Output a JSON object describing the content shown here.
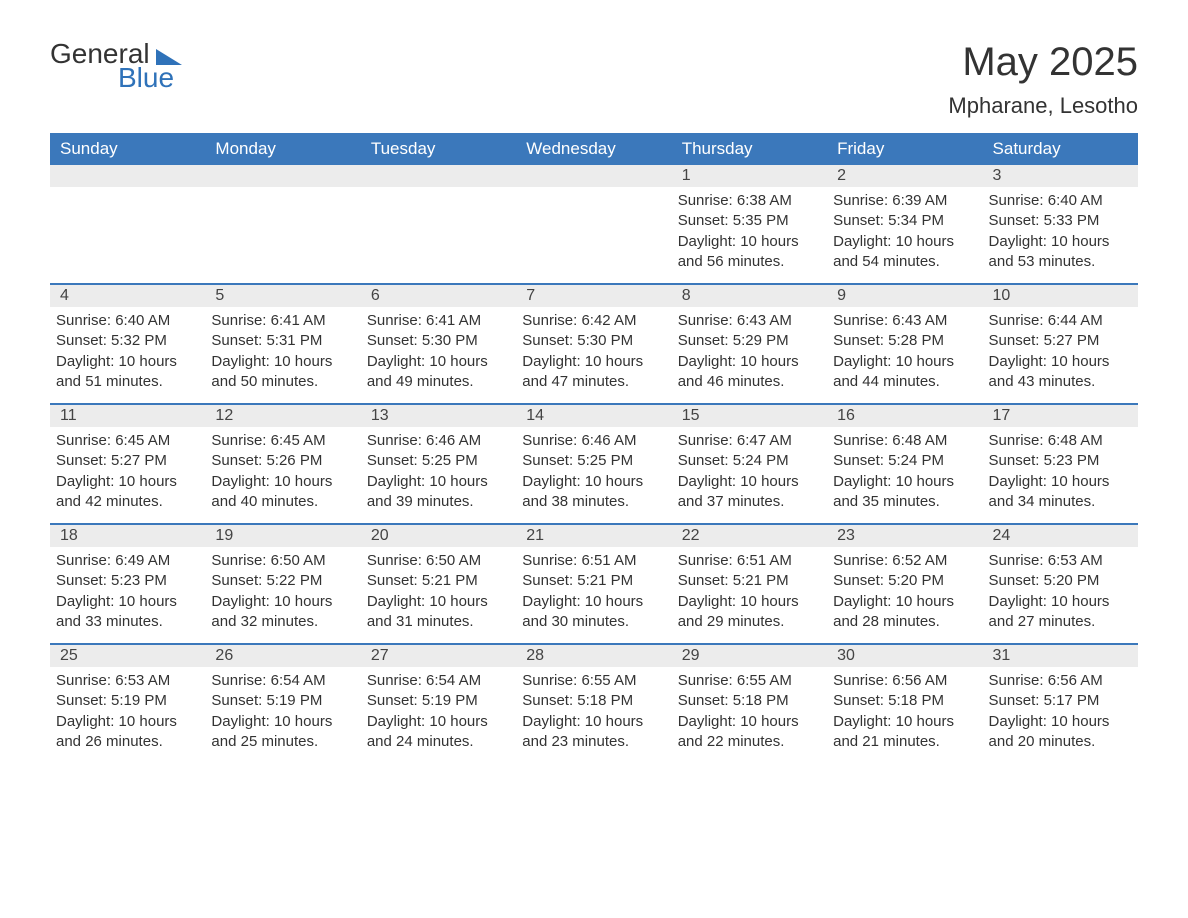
{
  "logo": {
    "text1": "General",
    "text2": "Blue"
  },
  "title": "May 2025",
  "location": "Mpharane, Lesotho",
  "headerColor": "#3b78bb",
  "dateBarColor": "#ececec",
  "textColor": "#333333",
  "dayNames": [
    "Sunday",
    "Monday",
    "Tuesday",
    "Wednesday",
    "Thursday",
    "Friday",
    "Saturday"
  ],
  "weeks": [
    [
      {
        "date": "",
        "sunrise": "",
        "sunset": "",
        "daylight": ""
      },
      {
        "date": "",
        "sunrise": "",
        "sunset": "",
        "daylight": ""
      },
      {
        "date": "",
        "sunrise": "",
        "sunset": "",
        "daylight": ""
      },
      {
        "date": "",
        "sunrise": "",
        "sunset": "",
        "daylight": ""
      },
      {
        "date": "1",
        "sunrise": "Sunrise: 6:38 AM",
        "sunset": "Sunset: 5:35 PM",
        "daylight": "Daylight: 10 hours and 56 minutes."
      },
      {
        "date": "2",
        "sunrise": "Sunrise: 6:39 AM",
        "sunset": "Sunset: 5:34 PM",
        "daylight": "Daylight: 10 hours and 54 minutes."
      },
      {
        "date": "3",
        "sunrise": "Sunrise: 6:40 AM",
        "sunset": "Sunset: 5:33 PM",
        "daylight": "Daylight: 10 hours and 53 minutes."
      }
    ],
    [
      {
        "date": "4",
        "sunrise": "Sunrise: 6:40 AM",
        "sunset": "Sunset: 5:32 PM",
        "daylight": "Daylight: 10 hours and 51 minutes."
      },
      {
        "date": "5",
        "sunrise": "Sunrise: 6:41 AM",
        "sunset": "Sunset: 5:31 PM",
        "daylight": "Daylight: 10 hours and 50 minutes."
      },
      {
        "date": "6",
        "sunrise": "Sunrise: 6:41 AM",
        "sunset": "Sunset: 5:30 PM",
        "daylight": "Daylight: 10 hours and 49 minutes."
      },
      {
        "date": "7",
        "sunrise": "Sunrise: 6:42 AM",
        "sunset": "Sunset: 5:30 PM",
        "daylight": "Daylight: 10 hours and 47 minutes."
      },
      {
        "date": "8",
        "sunrise": "Sunrise: 6:43 AM",
        "sunset": "Sunset: 5:29 PM",
        "daylight": "Daylight: 10 hours and 46 minutes."
      },
      {
        "date": "9",
        "sunrise": "Sunrise: 6:43 AM",
        "sunset": "Sunset: 5:28 PM",
        "daylight": "Daylight: 10 hours and 44 minutes."
      },
      {
        "date": "10",
        "sunrise": "Sunrise: 6:44 AM",
        "sunset": "Sunset: 5:27 PM",
        "daylight": "Daylight: 10 hours and 43 minutes."
      }
    ],
    [
      {
        "date": "11",
        "sunrise": "Sunrise: 6:45 AM",
        "sunset": "Sunset: 5:27 PM",
        "daylight": "Daylight: 10 hours and 42 minutes."
      },
      {
        "date": "12",
        "sunrise": "Sunrise: 6:45 AM",
        "sunset": "Sunset: 5:26 PM",
        "daylight": "Daylight: 10 hours and 40 minutes."
      },
      {
        "date": "13",
        "sunrise": "Sunrise: 6:46 AM",
        "sunset": "Sunset: 5:25 PM",
        "daylight": "Daylight: 10 hours and 39 minutes."
      },
      {
        "date": "14",
        "sunrise": "Sunrise: 6:46 AM",
        "sunset": "Sunset: 5:25 PM",
        "daylight": "Daylight: 10 hours and 38 minutes."
      },
      {
        "date": "15",
        "sunrise": "Sunrise: 6:47 AM",
        "sunset": "Sunset: 5:24 PM",
        "daylight": "Daylight: 10 hours and 37 minutes."
      },
      {
        "date": "16",
        "sunrise": "Sunrise: 6:48 AM",
        "sunset": "Sunset: 5:24 PM",
        "daylight": "Daylight: 10 hours and 35 minutes."
      },
      {
        "date": "17",
        "sunrise": "Sunrise: 6:48 AM",
        "sunset": "Sunset: 5:23 PM",
        "daylight": "Daylight: 10 hours and 34 minutes."
      }
    ],
    [
      {
        "date": "18",
        "sunrise": "Sunrise: 6:49 AM",
        "sunset": "Sunset: 5:23 PM",
        "daylight": "Daylight: 10 hours and 33 minutes."
      },
      {
        "date": "19",
        "sunrise": "Sunrise: 6:50 AM",
        "sunset": "Sunset: 5:22 PM",
        "daylight": "Daylight: 10 hours and 32 minutes."
      },
      {
        "date": "20",
        "sunrise": "Sunrise: 6:50 AM",
        "sunset": "Sunset: 5:21 PM",
        "daylight": "Daylight: 10 hours and 31 minutes."
      },
      {
        "date": "21",
        "sunrise": "Sunrise: 6:51 AM",
        "sunset": "Sunset: 5:21 PM",
        "daylight": "Daylight: 10 hours and 30 minutes."
      },
      {
        "date": "22",
        "sunrise": "Sunrise: 6:51 AM",
        "sunset": "Sunset: 5:21 PM",
        "daylight": "Daylight: 10 hours and 29 minutes."
      },
      {
        "date": "23",
        "sunrise": "Sunrise: 6:52 AM",
        "sunset": "Sunset: 5:20 PM",
        "daylight": "Daylight: 10 hours and 28 minutes."
      },
      {
        "date": "24",
        "sunrise": "Sunrise: 6:53 AM",
        "sunset": "Sunset: 5:20 PM",
        "daylight": "Daylight: 10 hours and 27 minutes."
      }
    ],
    [
      {
        "date": "25",
        "sunrise": "Sunrise: 6:53 AM",
        "sunset": "Sunset: 5:19 PM",
        "daylight": "Daylight: 10 hours and 26 minutes."
      },
      {
        "date": "26",
        "sunrise": "Sunrise: 6:54 AM",
        "sunset": "Sunset: 5:19 PM",
        "daylight": "Daylight: 10 hours and 25 minutes."
      },
      {
        "date": "27",
        "sunrise": "Sunrise: 6:54 AM",
        "sunset": "Sunset: 5:19 PM",
        "daylight": "Daylight: 10 hours and 24 minutes."
      },
      {
        "date": "28",
        "sunrise": "Sunrise: 6:55 AM",
        "sunset": "Sunset: 5:18 PM",
        "daylight": "Daylight: 10 hours and 23 minutes."
      },
      {
        "date": "29",
        "sunrise": "Sunrise: 6:55 AM",
        "sunset": "Sunset: 5:18 PM",
        "daylight": "Daylight: 10 hours and 22 minutes."
      },
      {
        "date": "30",
        "sunrise": "Sunrise: 6:56 AM",
        "sunset": "Sunset: 5:18 PM",
        "daylight": "Daylight: 10 hours and 21 minutes."
      },
      {
        "date": "31",
        "sunrise": "Sunrise: 6:56 AM",
        "sunset": "Sunset: 5:17 PM",
        "daylight": "Daylight: 10 hours and 20 minutes."
      }
    ]
  ]
}
